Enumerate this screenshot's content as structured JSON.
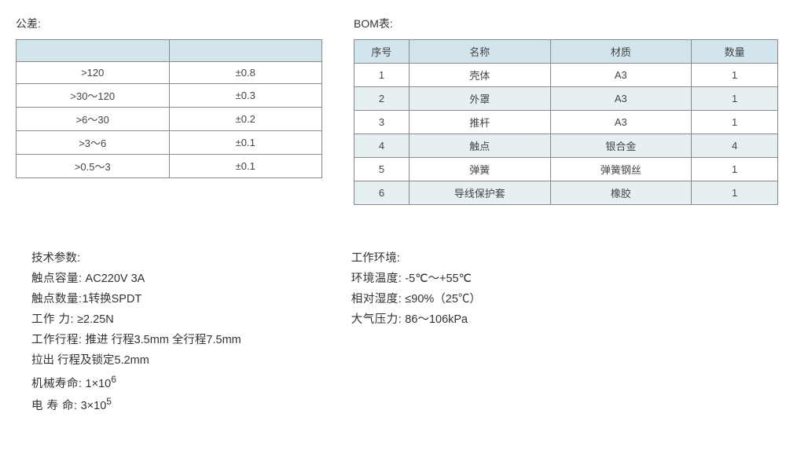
{
  "tolerance": {
    "title": "公差:",
    "header": [
      "",
      ""
    ],
    "rows": [
      [
        ">120",
        "±0.8"
      ],
      [
        ">30～120",
        "±0.3"
      ],
      [
        ">6～30",
        "±0.2"
      ],
      [
        ">3～6",
        "±0.1"
      ],
      [
        ">0.5～3",
        "±0.1"
      ]
    ],
    "header_bg": "#d2e5ec",
    "border_color": "#888888"
  },
  "bom": {
    "title": "BOM表:",
    "columns": [
      "序号",
      "名称",
      "材质",
      "数量"
    ],
    "rows": [
      [
        "1",
        "壳体",
        "A3",
        "1"
      ],
      [
        "2",
        "外罩",
        "A3",
        "1"
      ],
      [
        "3",
        "推杆",
        "A3",
        "1"
      ],
      [
        "4",
        "触点",
        "银合金",
        "4"
      ],
      [
        "5",
        "弹簧",
        "弹簧钢丝",
        "1"
      ],
      [
        "6",
        "导线保护套",
        "橡胶",
        "1"
      ]
    ],
    "header_bg": "#d2e5ec",
    "alt_row_bg": "#e6eff2"
  },
  "tech_params": {
    "title": "技术参数:",
    "lines": {
      "l1_label": "触点容量:",
      "l1_val": " AC220V 3A",
      "l2_label": "触点数量:",
      "l2_val": "1转换SPDT",
      "l3_label": "工作  力:",
      "l3_val": " ≥2.25N",
      "l4_label": "工作行程:",
      "l4_val": " 推进  行程3.5mm   全行程7.5mm",
      "l5": "拉出  行程及锁定5.2mm",
      "l6_label": "机械寿命:",
      "l6_val": " 1×10",
      "l6_sup": "6",
      "l7_label": "电 寿 命:",
      "l7_val": " 3×10",
      "l7_sup": "5"
    }
  },
  "work_env": {
    "title": "工作环境:",
    "lines": {
      "l1_label": "环境温度:",
      "l1_val": " -5℃～+55℃",
      "l2_label": "相对湿度:",
      "l2_val": " ≤90%（25℃）",
      "l3_label": "大气压力:",
      "l3_val": " 86～106kPa"
    }
  }
}
